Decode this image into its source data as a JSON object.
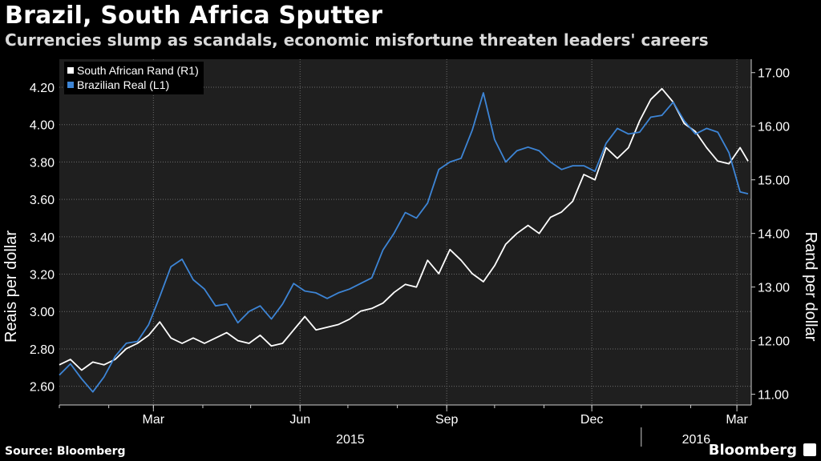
{
  "header": {
    "title": "Brazil, South Africa Sputter",
    "subtitle": "Currencies slump as scandals, economic misfortune threaten leaders' careers"
  },
  "footer": {
    "source": "Source: Bloomberg",
    "brand": "Bloomberg"
  },
  "colors": {
    "real": "#3d85d6",
    "rand": "#ffffff",
    "background": "#1f1f1f",
    "grid": "#6b6b6b"
  },
  "chart_data": {
    "type": "line",
    "x_axis": {
      "tick_labels": [
        "Mar",
        "Jun",
        "Sep",
        "Dec",
        "Mar"
      ],
      "tick_dates": [
        "2015-03-01",
        "2015-06-01",
        "2015-09-01",
        "2015-12-01",
        "2016-03-01"
      ],
      "year_labels": [
        "2015",
        "2016"
      ],
      "xlim": [
        "2015-01-01",
        "2016-03-10"
      ]
    },
    "y_left": {
      "label": "Reais per dollar",
      "ylim": [
        2.5,
        4.35
      ],
      "ticks": [
        "2.60",
        "2.80",
        "3.00",
        "3.20",
        "3.40",
        "3.60",
        "3.80",
        "4.00",
        "4.20"
      ]
    },
    "y_right": {
      "label": "Rand per dollar",
      "ylim": [
        10.8,
        17.25
      ],
      "ticks": [
        "11.00",
        "12.00",
        "13.00",
        "14.00",
        "15.00",
        "16.00",
        "17.00"
      ]
    },
    "grid": true,
    "legend": {
      "placement": "top-left",
      "entries": [
        "South African Rand (R1)",
        "Brazilian Real (L1)"
      ]
    },
    "series": [
      {
        "name": "Brazilian Real (L1)",
        "axis": "left",
        "x": [
          "2015-01-01",
          "2015-01-08",
          "2015-01-15",
          "2015-01-22",
          "2015-01-29",
          "2015-02-05",
          "2015-02-12",
          "2015-02-19",
          "2015-02-26",
          "2015-03-05",
          "2015-03-12",
          "2015-03-19",
          "2015-03-26",
          "2015-04-02",
          "2015-04-09",
          "2015-04-16",
          "2015-04-23",
          "2015-04-30",
          "2015-05-07",
          "2015-05-14",
          "2015-05-21",
          "2015-05-28",
          "2015-06-04",
          "2015-06-11",
          "2015-06-18",
          "2015-06-25",
          "2015-07-02",
          "2015-07-09",
          "2015-07-16",
          "2015-07-23",
          "2015-07-30",
          "2015-08-06",
          "2015-08-13",
          "2015-08-20",
          "2015-08-27",
          "2015-09-03",
          "2015-09-10",
          "2015-09-17",
          "2015-09-24",
          "2015-10-01",
          "2015-10-08",
          "2015-10-15",
          "2015-10-22",
          "2015-10-29",
          "2015-11-05",
          "2015-11-12",
          "2015-11-19",
          "2015-11-26",
          "2015-12-03",
          "2015-12-10",
          "2015-12-17",
          "2015-12-24",
          "2015-12-31",
          "2016-01-07",
          "2016-01-14",
          "2016-01-21",
          "2016-01-28",
          "2016-02-04",
          "2016-02-11",
          "2016-02-18",
          "2016-02-25",
          "2016-03-03",
          "2016-03-08"
        ],
        "values": [
          2.66,
          2.72,
          2.64,
          2.57,
          2.65,
          2.76,
          2.83,
          2.84,
          2.93,
          3.08,
          3.24,
          3.28,
          3.17,
          3.12,
          3.03,
          3.04,
          2.94,
          3.0,
          3.03,
          2.96,
          3.04,
          3.15,
          3.11,
          3.1,
          3.07,
          3.1,
          3.12,
          3.15,
          3.18,
          3.33,
          3.42,
          3.53,
          3.5,
          3.58,
          3.76,
          3.8,
          3.82,
          3.97,
          4.17,
          3.92,
          3.8,
          3.86,
          3.88,
          3.86,
          3.8,
          3.76,
          3.78,
          3.78,
          3.75,
          3.9,
          3.98,
          3.95,
          3.96,
          4.04,
          4.05,
          4.12,
          4.02,
          3.95,
          3.98,
          3.96,
          3.85,
          3.64,
          3.63
        ]
      },
      {
        "name": "South African Rand (R1)",
        "axis": "right",
        "x": [
          "2015-01-01",
          "2015-01-08",
          "2015-01-15",
          "2015-01-22",
          "2015-01-29",
          "2015-02-05",
          "2015-02-12",
          "2015-02-19",
          "2015-02-26",
          "2015-03-05",
          "2015-03-12",
          "2015-03-19",
          "2015-03-26",
          "2015-04-02",
          "2015-04-09",
          "2015-04-16",
          "2015-04-23",
          "2015-04-30",
          "2015-05-07",
          "2015-05-14",
          "2015-05-21",
          "2015-05-28",
          "2015-06-04",
          "2015-06-11",
          "2015-06-18",
          "2015-06-25",
          "2015-07-02",
          "2015-07-09",
          "2015-07-16",
          "2015-07-23",
          "2015-07-30",
          "2015-08-06",
          "2015-08-13",
          "2015-08-20",
          "2015-08-27",
          "2015-09-03",
          "2015-09-10",
          "2015-09-17",
          "2015-09-24",
          "2015-10-01",
          "2015-10-08",
          "2015-10-15",
          "2015-10-22",
          "2015-10-29",
          "2015-11-05",
          "2015-11-12",
          "2015-11-19",
          "2015-11-26",
          "2015-12-03",
          "2015-12-10",
          "2015-12-17",
          "2015-12-24",
          "2015-12-31",
          "2016-01-07",
          "2016-01-14",
          "2016-01-21",
          "2016-01-28",
          "2016-02-04",
          "2016-02-11",
          "2016-02-18",
          "2016-02-25",
          "2016-03-03",
          "2016-03-08"
        ],
        "values": [
          11.55,
          11.65,
          11.45,
          11.6,
          11.55,
          11.65,
          11.85,
          11.95,
          12.1,
          12.35,
          12.05,
          11.95,
          12.05,
          11.95,
          12.05,
          12.15,
          12.0,
          11.95,
          12.1,
          11.9,
          11.95,
          12.2,
          12.45,
          12.2,
          12.25,
          12.3,
          12.4,
          12.55,
          12.6,
          12.7,
          12.9,
          13.05,
          13.0,
          13.5,
          13.25,
          13.7,
          13.5,
          13.25,
          13.1,
          13.4,
          13.8,
          14.0,
          14.15,
          14.0,
          14.3,
          14.4,
          14.6,
          15.1,
          15.0,
          15.6,
          15.4,
          15.6,
          16.1,
          16.5,
          16.7,
          16.45,
          16.05,
          15.9,
          15.6,
          15.35,
          15.3,
          15.6,
          15.35
        ]
      }
    ]
  }
}
